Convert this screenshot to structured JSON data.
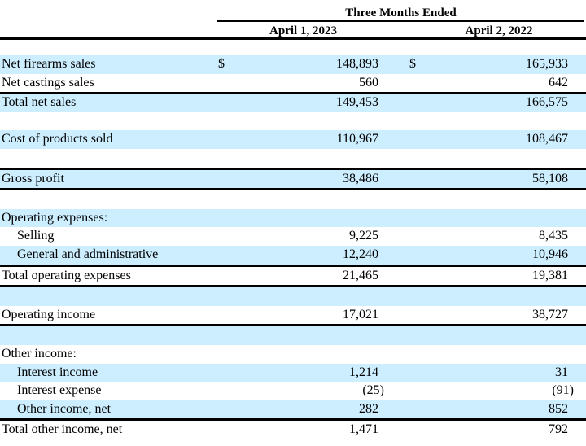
{
  "document": {
    "header": {
      "period_label": "Three Months Ended",
      "col1_label": "April 1, 2023",
      "col2_label": "April 2, 2022"
    },
    "rows": [
      {
        "label": "Net firearms sales",
        "indent": 0,
        "shaded": true,
        "d1": "$",
        "v1": "148,893",
        "d2": "$",
        "v2": "165,933"
      },
      {
        "label": "Net castings sales",
        "indent": 0,
        "shaded": false,
        "v1": "560",
        "v2": "642"
      },
      {
        "label": "Total net sales",
        "indent": 0,
        "shaded": true,
        "v1": "149,453",
        "v2": "166,575",
        "border_top": "thin"
      },
      {
        "spacer": true,
        "shaded": false
      },
      {
        "label": "Cost of products sold",
        "indent": 0,
        "shaded": true,
        "v1": "110,967",
        "v2": "108,467"
      },
      {
        "spacer": true,
        "shaded": false
      },
      {
        "label": "Gross profit",
        "indent": 0,
        "shaded": true,
        "v1": "38,486",
        "v2": "58,108",
        "border_top": "thick",
        "border_bottom": "thick"
      },
      {
        "spacer": true,
        "shaded": false
      },
      {
        "label": "Operating expenses:",
        "indent": 0,
        "shaded": true
      },
      {
        "label": "Selling",
        "indent": 1,
        "shaded": false,
        "v1": "9,225",
        "v2": "8,435"
      },
      {
        "label": "General and administrative",
        "indent": 1,
        "shaded": true,
        "v1": "12,240",
        "v2": "10,946"
      },
      {
        "label": "Total operating expenses",
        "indent": 0,
        "shaded": false,
        "v1": "21,465",
        "v2": "19,381",
        "border_top": "thick",
        "border_bottom": "thick"
      },
      {
        "spacer": true,
        "shaded": true
      },
      {
        "label": "Operating income",
        "indent": 0,
        "shaded": false,
        "v1": "17,021",
        "v2": "38,727",
        "border_bottom": "thick"
      },
      {
        "spacer": true,
        "shaded": true
      },
      {
        "label": "Other income:",
        "indent": 0,
        "shaded": false
      },
      {
        "label": "Interest income",
        "indent": 1,
        "shaded": true,
        "v1": "1,214",
        "v2": "31"
      },
      {
        "label": "Interest expense",
        "indent": 1,
        "shaded": false,
        "v1": "(25)",
        "v2": "(91)"
      },
      {
        "label": "Other income, net",
        "indent": 1,
        "shaded": true,
        "v1": "282",
        "v2": "852"
      },
      {
        "label": "Total other income, net",
        "indent": 0,
        "shaded": false,
        "v1": "1,471",
        "v2": "792",
        "border_top": "thick"
      }
    ],
    "colors": {
      "row_highlight": "#cceeff",
      "rule": "#000000",
      "text": "#000000",
      "background": "#ffffff"
    }
  }
}
